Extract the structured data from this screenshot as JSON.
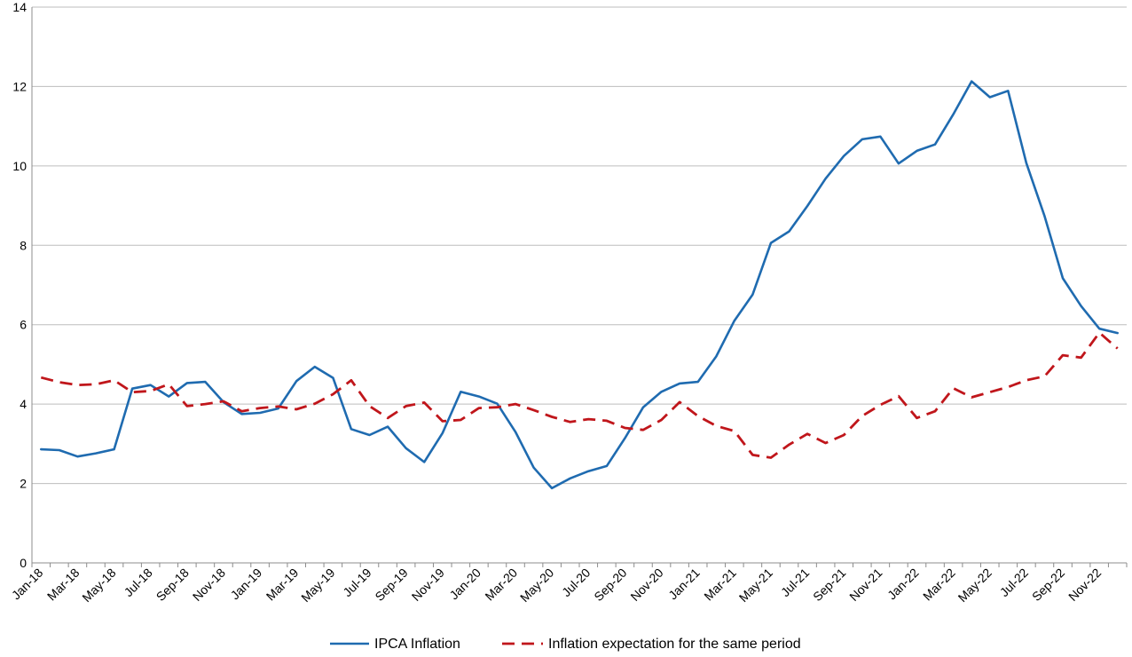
{
  "chart_data": {
    "type": "line",
    "title": "",
    "xlabel": "",
    "ylabel": "",
    "ylim": [
      0,
      14
    ],
    "yticks": [
      0,
      2,
      4,
      6,
      8,
      10,
      12,
      14
    ],
    "grid": "horizontal",
    "legend_position": "bottom",
    "x": [
      "Jan-18",
      "Feb-18",
      "Mar-18",
      "Apr-18",
      "May-18",
      "Jun-18",
      "Jul-18",
      "Aug-18",
      "Sep-18",
      "Oct-18",
      "Nov-18",
      "Dec-18",
      "Jan-19",
      "Feb-19",
      "Mar-19",
      "Apr-19",
      "May-19",
      "Jun-19",
      "Jul-19",
      "Aug-19",
      "Sep-19",
      "Oct-19",
      "Nov-19",
      "Dec-19",
      "Jan-20",
      "Feb-20",
      "Mar-20",
      "Apr-20",
      "May-20",
      "Jun-20",
      "Jul-20",
      "Aug-20",
      "Sep-20",
      "Oct-20",
      "Nov-20",
      "Dec-20",
      "Jan-21",
      "Feb-21",
      "Mar-21",
      "Apr-21",
      "May-21",
      "Jun-21",
      "Jul-21",
      "Aug-21",
      "Sep-21",
      "Oct-21",
      "Nov-21",
      "Dec-21",
      "Jan-22",
      "Feb-22",
      "Mar-22",
      "Apr-22",
      "May-22",
      "Jun-22",
      "Jul-22",
      "Aug-22",
      "Sep-22",
      "Oct-22",
      "Nov-22",
      "Dec-22"
    ],
    "tick_labels": [
      "Jan-18",
      "Mar-18",
      "May-18",
      "Jul-18",
      "Sep-18",
      "Nov-18",
      "Jan-19",
      "Mar-19",
      "May-19",
      "Jul-19",
      "Sep-19",
      "Nov-19",
      "Jan-20",
      "Mar-20",
      "May-20",
      "Jul-20",
      "Sep-20",
      "Nov-20",
      "Jan-21",
      "Mar-21",
      "May-21",
      "Jul-21",
      "Sep-21",
      "Nov-21",
      "Jan-22",
      "Mar-22",
      "May-22",
      "Jul-22",
      "Sep-22",
      "Nov-22"
    ],
    "series": [
      {
        "name": "IPCA Inflation",
        "color": "#1f6bb0",
        "style": "solid",
        "values": [
          2.86,
          2.84,
          2.68,
          2.76,
          2.86,
          4.39,
          4.48,
          4.19,
          4.53,
          4.56,
          4.05,
          3.75,
          3.78,
          3.89,
          4.58,
          4.94,
          4.66,
          3.37,
          3.22,
          3.43,
          2.89,
          2.54,
          3.27,
          4.31,
          4.19,
          4.01,
          3.3,
          2.4,
          1.88,
          2.13,
          2.31,
          2.44,
          3.14,
          3.92,
          4.31,
          4.52,
          4.56,
          5.2,
          6.1,
          6.76,
          8.06,
          8.35,
          8.99,
          9.68,
          10.25,
          10.67,
          10.74,
          10.06,
          10.38,
          10.54,
          11.3,
          12.13,
          11.73,
          11.89,
          10.07,
          8.73,
          7.17,
          6.47,
          5.9,
          5.79
        ]
      },
      {
        "name": "Inflation expectation for the same period",
        "color": "#c0161b",
        "style": "dashed",
        "values": [
          4.67,
          4.55,
          4.48,
          4.5,
          4.6,
          4.3,
          4.33,
          4.5,
          3.95,
          4.0,
          4.07,
          3.82,
          3.9,
          3.94,
          3.87,
          4.01,
          4.25,
          4.6,
          3.95,
          3.65,
          3.95,
          4.04,
          3.57,
          3.6,
          3.9,
          3.92,
          4.0,
          3.85,
          3.68,
          3.55,
          3.62,
          3.58,
          3.4,
          3.35,
          3.6,
          4.05,
          3.7,
          3.45,
          3.32,
          2.72,
          2.65,
          2.98,
          3.25,
          3.02,
          3.22,
          3.7,
          3.98,
          4.2,
          3.65,
          3.82,
          4.4,
          4.17,
          4.3,
          4.43,
          4.6,
          4.7,
          5.23,
          5.17,
          5.8,
          5.4
        ]
      }
    ]
  }
}
